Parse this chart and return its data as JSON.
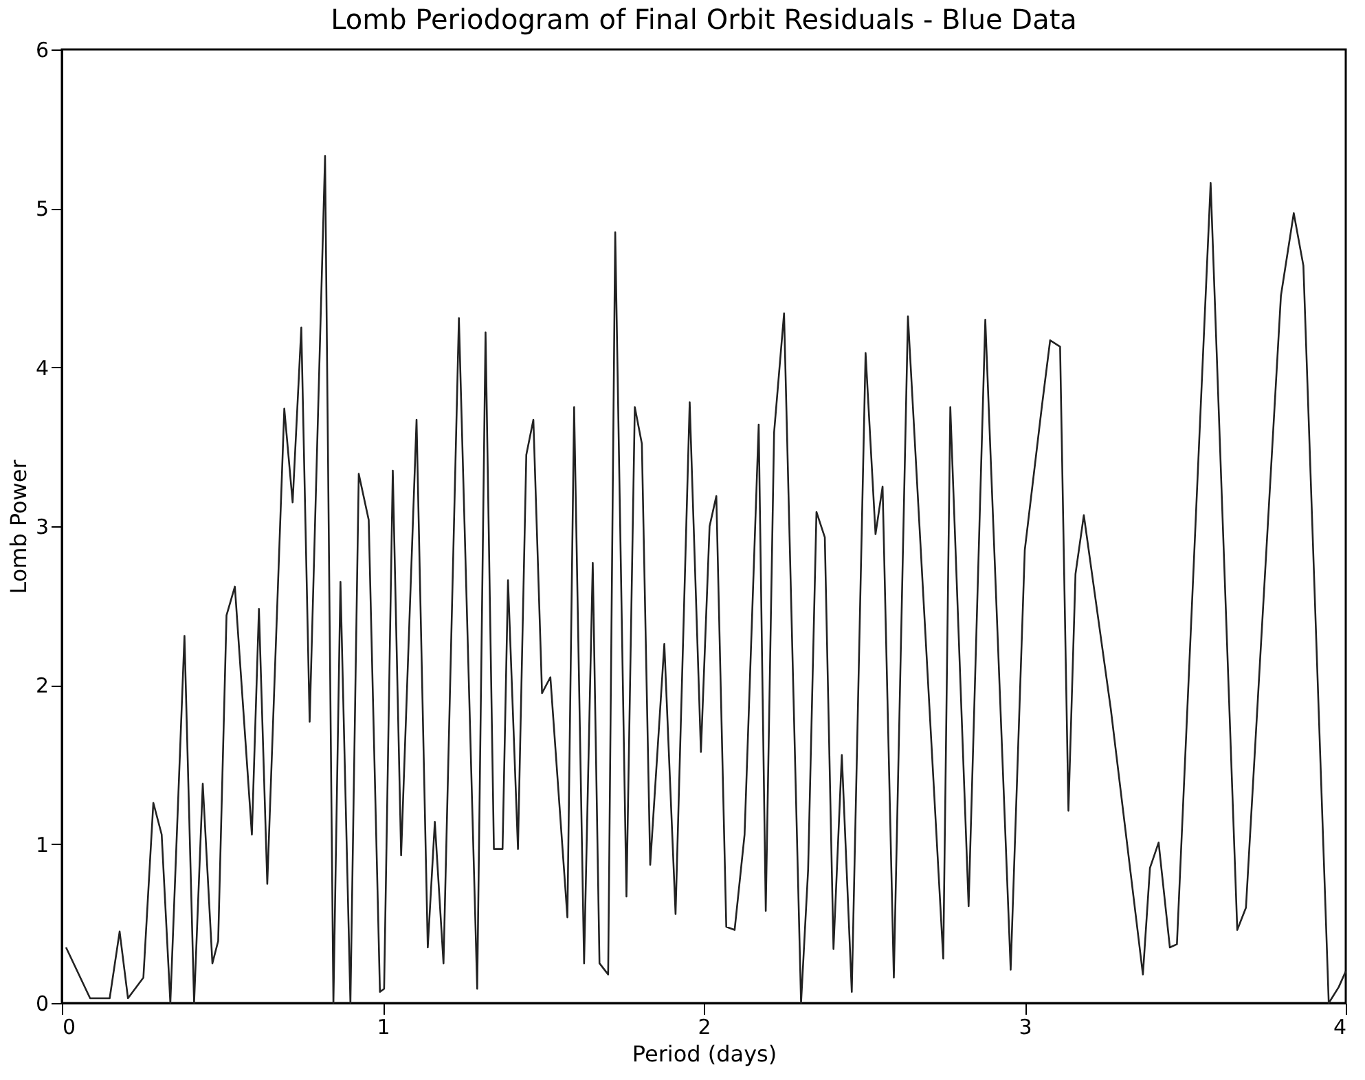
{
  "chart_data": {
    "type": "line",
    "title": "Lomb Periodogram of Final Orbit Residuals - Blue Data",
    "xlabel": "Period (days)",
    "ylabel": "Lomb Power",
    "xlim": [
      0,
      4
    ],
    "xticks": [
      0,
      1,
      2,
      3,
      4
    ],
    "ylim": [
      0,
      6
    ],
    "yticks": [
      0,
      1,
      2,
      3,
      4,
      5,
      6
    ],
    "grid": false,
    "marker": "none",
    "line_style": "solid",
    "series": [
      {
        "color": "#222222",
        "x": [
          0.013,
          0.088,
          0.149,
          0.18,
          0.206,
          0.254,
          0.285,
          0.311,
          0.338,
          0.382,
          0.412,
          0.439,
          0.469,
          0.487,
          0.513,
          0.539,
          0.592,
          0.614,
          0.64,
          0.693,
          0.719,
          0.746,
          0.772,
          0.82,
          0.846,
          0.868,
          0.899,
          0.925,
          0.956,
          0.991,
          1.004,
          1.031,
          1.057,
          1.105,
          1.14,
          1.162,
          1.189,
          1.237,
          1.294,
          1.32,
          1.346,
          1.373,
          1.39,
          1.421,
          1.447,
          1.469,
          1.496,
          1.522,
          1.575,
          1.596,
          1.627,
          1.654,
          1.675,
          1.702,
          1.724,
          1.759,
          1.785,
          1.807,
          1.833,
          1.877,
          1.912,
          1.956,
          1.991,
          2.018,
          2.039,
          2.07,
          2.096,
          2.127,
          2.171,
          2.193,
          2.219,
          2.25,
          2.303,
          2.325,
          2.351,
          2.377,
          2.404,
          2.43,
          2.461,
          2.504,
          2.535,
          2.557,
          2.592,
          2.636,
          2.746,
          2.768,
          2.825,
          2.877,
          2.956,
          3.0,
          3.053,
          3.079,
          3.11,
          3.136,
          3.158,
          3.184,
          3.268,
          3.368,
          3.39,
          3.417,
          3.452,
          3.474,
          3.579,
          3.662,
          3.689,
          3.798,
          3.838,
          3.868,
          3.947,
          3.978,
          4.0
        ],
        "values": [
          0.35,
          0.03,
          0.03,
          0.45,
          0.03,
          0.16,
          1.26,
          1.06,
          0,
          2.31,
          0,
          1.38,
          0.25,
          0.39,
          2.44,
          2.62,
          1.06,
          2.48,
          0.75,
          3.74,
          3.15,
          4.25,
          1.77,
          5.33,
          0,
          2.65,
          0,
          3.33,
          3.04,
          0.07,
          0.09,
          3.35,
          0.93,
          3.67,
          0.35,
          1.14,
          0.25,
          4.31,
          0.09,
          4.22,
          0.97,
          0.97,
          2.66,
          0.97,
          3.45,
          3.67,
          1.95,
          2.05,
          0.54,
          3.75,
          0.25,
          2.77,
          0.25,
          0.18,
          4.85,
          0.67,
          3.75,
          3.52,
          0.87,
          2.26,
          0.56,
          3.78,
          1.58,
          3.0,
          3.19,
          0.48,
          0.46,
          1.06,
          3.64,
          0.58,
          3.59,
          4.34,
          0,
          0.84,
          3.09,
          2.93,
          0.34,
          1.56,
          0.07,
          4.09,
          2.95,
          3.25,
          0.16,
          4.32,
          0.28,
          3.75,
          0.61,
          4.3,
          0.21,
          2.85,
          3.75,
          4.17,
          4.13,
          1.21,
          2.7,
          3.07,
          1.85,
          0.18,
          0.85,
          1.01,
          0.35,
          0.37,
          5.16,
          0.46,
          0.6,
          4.45,
          4.97,
          4.64,
          0,
          0.1,
          0.2
        ]
      }
    ]
  }
}
